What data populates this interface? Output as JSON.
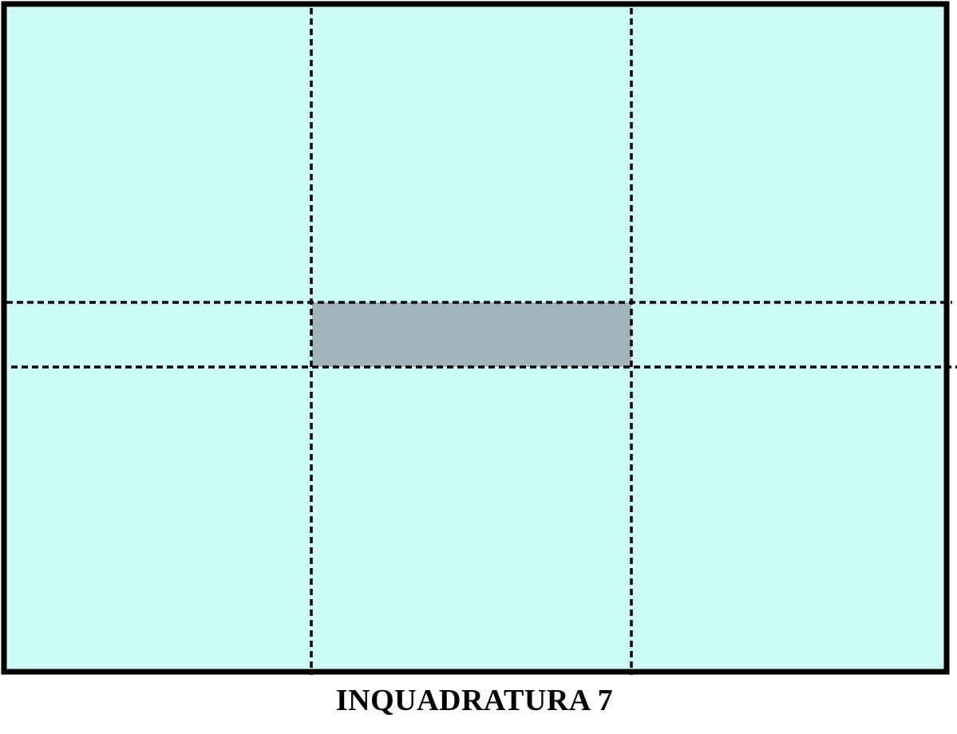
{
  "caption": "INQUADRATURA 7",
  "colors": {
    "background": "#ccfcf6",
    "highlight": "#9fb5bb",
    "lines": "#000000"
  }
}
